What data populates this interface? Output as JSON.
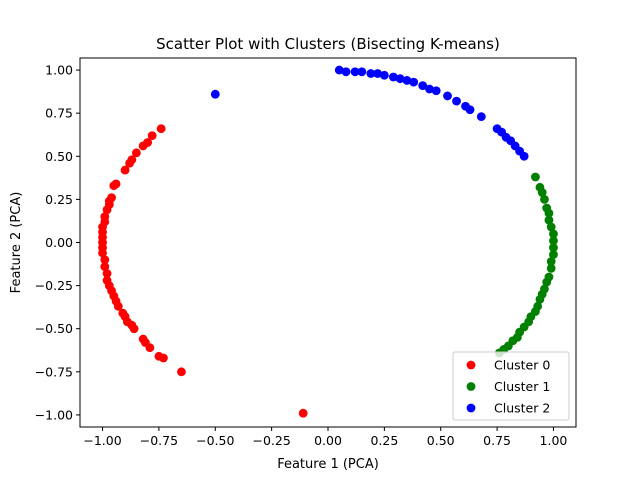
{
  "chart_data": {
    "type": "scatter",
    "title": "Scatter Plot with Clusters (Bisecting K-means)",
    "xlabel": "Feature 1 (PCA)",
    "ylabel": "Feature 2 (PCA)",
    "xlim": [
      -1.1,
      1.1
    ],
    "ylim": [
      -1.07,
      1.07
    ],
    "xticks": [
      -1.0,
      -0.75,
      -0.5,
      -0.25,
      0.0,
      0.25,
      0.5,
      0.75,
      1.0
    ],
    "xtick_labels": [
      "−1.00",
      "−0.75",
      "−0.50",
      "−0.25",
      "0.00",
      "0.25",
      "0.50",
      "0.75",
      "1.00"
    ],
    "yticks": [
      -1.0,
      -0.75,
      -0.5,
      -0.25,
      0.0,
      0.25,
      0.5,
      0.75,
      1.0
    ],
    "ytick_labels": [
      "−1.00",
      "−0.75",
      "−0.50",
      "−0.25",
      "0.00",
      "0.25",
      "0.50",
      "0.75",
      "1.00"
    ],
    "grid": false,
    "legend_position": "lower right",
    "series": [
      {
        "name": "Cluster 0",
        "color": "#ff0000",
        "points": [
          [
            -0.74,
            0.66
          ],
          [
            -0.78,
            0.62
          ],
          [
            -0.8,
            0.58
          ],
          [
            -0.82,
            0.56
          ],
          [
            -0.85,
            0.52
          ],
          [
            -0.87,
            0.48
          ],
          [
            -0.88,
            0.46
          ],
          [
            -0.9,
            0.42
          ],
          [
            -0.94,
            0.34
          ],
          [
            -0.95,
            0.33
          ],
          [
            -0.96,
            0.26
          ],
          [
            -0.97,
            0.24
          ],
          [
            -0.97,
            0.22
          ],
          [
            -0.98,
            0.19
          ],
          [
            -0.99,
            0.15
          ],
          [
            -0.99,
            0.12
          ],
          [
            -1.0,
            0.09
          ],
          [
            -1.0,
            0.06
          ],
          [
            -1.0,
            0.03
          ],
          [
            -1.0,
            0.0
          ],
          [
            -1.0,
            -0.03
          ],
          [
            -1.0,
            -0.06
          ],
          [
            -0.99,
            -0.1
          ],
          [
            -0.99,
            -0.14
          ],
          [
            -0.98,
            -0.18
          ],
          [
            -0.98,
            -0.22
          ],
          [
            -0.97,
            -0.25
          ],
          [
            -0.96,
            -0.28
          ],
          [
            -0.95,
            -0.31
          ],
          [
            -0.94,
            -0.34
          ],
          [
            -0.93,
            -0.37
          ],
          [
            -0.91,
            -0.41
          ],
          [
            -0.9,
            -0.43
          ],
          [
            -0.89,
            -0.46
          ],
          [
            -0.87,
            -0.48
          ],
          [
            -0.86,
            -0.5
          ],
          [
            -0.82,
            -0.56
          ],
          [
            -0.81,
            -0.58
          ],
          [
            -0.79,
            -0.61
          ],
          [
            -0.75,
            -0.66
          ],
          [
            -0.73,
            -0.67
          ],
          [
            -0.65,
            -0.75
          ],
          [
            -0.11,
            -0.99
          ]
        ]
      },
      {
        "name": "Cluster 1",
        "color": "#008000",
        "points": [
          [
            0.92,
            0.38
          ],
          [
            0.94,
            0.32
          ],
          [
            0.95,
            0.29
          ],
          [
            0.96,
            0.25
          ],
          [
            0.97,
            0.2
          ],
          [
            0.98,
            0.17
          ],
          [
            0.98,
            0.13
          ],
          [
            0.99,
            0.09
          ],
          [
            1.0,
            0.05
          ],
          [
            1.0,
            0.01
          ],
          [
            1.0,
            -0.03
          ],
          [
            1.0,
            -0.07
          ],
          [
            0.99,
            -0.11
          ],
          [
            0.99,
            -0.15
          ],
          [
            0.98,
            -0.2
          ],
          [
            0.97,
            -0.23
          ],
          [
            0.96,
            -0.27
          ],
          [
            0.95,
            -0.3
          ],
          [
            0.94,
            -0.33
          ],
          [
            0.93,
            -0.37
          ],
          [
            0.92,
            -0.4
          ],
          [
            0.9,
            -0.43
          ],
          [
            0.89,
            -0.46
          ],
          [
            0.87,
            -0.49
          ],
          [
            0.85,
            -0.52
          ],
          [
            0.84,
            -0.55
          ],
          [
            0.82,
            -0.57
          ],
          [
            0.8,
            -0.6
          ],
          [
            0.78,
            -0.62
          ],
          [
            0.76,
            -0.64
          ]
        ]
      },
      {
        "name": "Cluster 2",
        "color": "#0000ff",
        "points": [
          [
            -0.5,
            0.86
          ],
          [
            0.05,
            1.0
          ],
          [
            0.08,
            0.99
          ],
          [
            0.12,
            0.99
          ],
          [
            0.15,
            0.99
          ],
          [
            0.19,
            0.98
          ],
          [
            0.22,
            0.98
          ],
          [
            0.25,
            0.97
          ],
          [
            0.29,
            0.96
          ],
          [
            0.32,
            0.95
          ],
          [
            0.35,
            0.94
          ],
          [
            0.38,
            0.93
          ],
          [
            0.42,
            0.91
          ],
          [
            0.45,
            0.89
          ],
          [
            0.48,
            0.88
          ],
          [
            0.53,
            0.85
          ],
          [
            0.57,
            0.82
          ],
          [
            0.61,
            0.79
          ],
          [
            0.63,
            0.77
          ],
          [
            0.68,
            0.73
          ],
          [
            0.75,
            0.66
          ],
          [
            0.77,
            0.64
          ],
          [
            0.79,
            0.61
          ],
          [
            0.81,
            0.59
          ],
          [
            0.83,
            0.56
          ],
          [
            0.85,
            0.53
          ],
          [
            0.87,
            0.5
          ]
        ]
      }
    ]
  }
}
